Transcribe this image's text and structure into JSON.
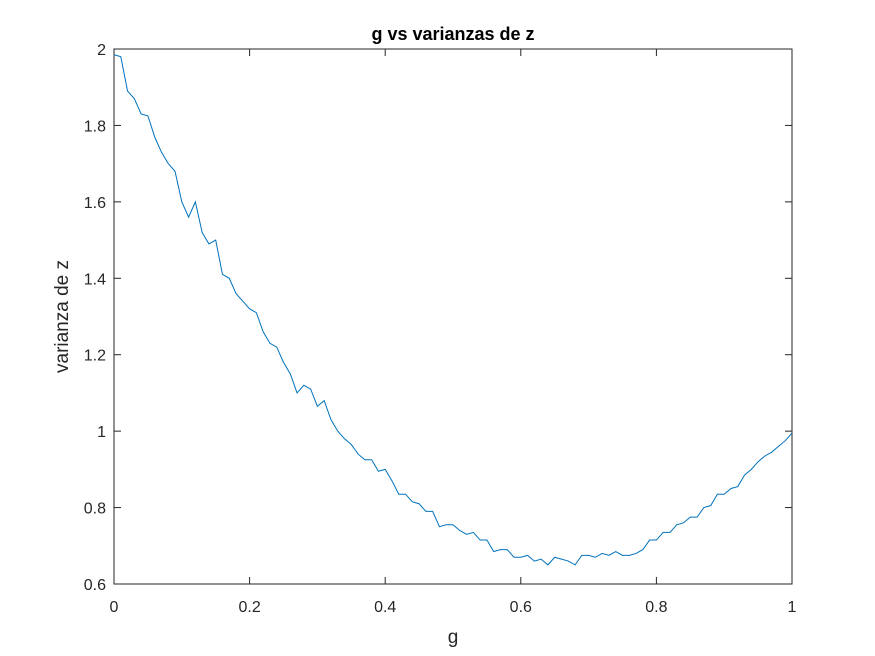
{
  "chart_data": {
    "type": "line",
    "title": "g vs varianzas de z",
    "xlabel": "g",
    "ylabel": "varianza de z",
    "xlim": [
      0,
      1
    ],
    "ylim": [
      0.6,
      2
    ],
    "xticks": [
      0,
      0.2,
      0.4,
      0.6,
      0.8,
      1
    ],
    "xtick_labels": [
      "0",
      "0.2",
      "0.4",
      "0.6",
      "0.8",
      "1"
    ],
    "yticks": [
      0.6,
      0.8,
      1,
      1.2,
      1.4,
      1.6,
      1.8,
      2
    ],
    "ytick_labels": [
      "0.6",
      "0.8",
      "1",
      "1.2",
      "1.4",
      "1.6",
      "1.8",
      "2"
    ],
    "grid": false,
    "line_color": "#0072BD",
    "series": [
      {
        "x": [
          0,
          0.01,
          0.02,
          0.03,
          0.04,
          0.05,
          0.06,
          0.07,
          0.08,
          0.09,
          0.1,
          0.11,
          0.12,
          0.13,
          0.14,
          0.15,
          0.16,
          0.17,
          0.18,
          0.19,
          0.2,
          0.21,
          0.22,
          0.23,
          0.24,
          0.25,
          0.26,
          0.27,
          0.28,
          0.29,
          0.3,
          0.31,
          0.32,
          0.33,
          0.34,
          0.35,
          0.36,
          0.37,
          0.38,
          0.39,
          0.4,
          0.41,
          0.42,
          0.43,
          0.44,
          0.45,
          0.46,
          0.47,
          0.48,
          0.49,
          0.5,
          0.51,
          0.52,
          0.53,
          0.54,
          0.55,
          0.56,
          0.57,
          0.58,
          0.59,
          0.6,
          0.61,
          0.62,
          0.63,
          0.64,
          0.65,
          0.66,
          0.67,
          0.68,
          0.69,
          0.7,
          0.71,
          0.72,
          0.73,
          0.74,
          0.75,
          0.76,
          0.77,
          0.78,
          0.79,
          0.8,
          0.81,
          0.82,
          0.83,
          0.84,
          0.85,
          0.86,
          0.87,
          0.88,
          0.89,
          0.9,
          0.91,
          0.92,
          0.93,
          0.94,
          0.95,
          0.96,
          0.97,
          0.98,
          0.99,
          1.0
        ],
        "values": [
          1.985,
          1.98,
          1.89,
          1.87,
          1.83,
          1.825,
          1.77,
          1.73,
          1.7,
          1.68,
          1.6,
          1.56,
          1.6,
          1.52,
          1.49,
          1.5,
          1.41,
          1.4,
          1.36,
          1.34,
          1.32,
          1.31,
          1.26,
          1.23,
          1.22,
          1.18,
          1.15,
          1.1,
          1.12,
          1.11,
          1.065,
          1.08,
          1.03,
          1.0,
          0.98,
          0.965,
          0.94,
          0.925,
          0.925,
          0.895,
          0.9,
          0.87,
          0.835,
          0.835,
          0.815,
          0.81,
          0.79,
          0.79,
          0.75,
          0.755,
          0.755,
          0.74,
          0.73,
          0.735,
          0.715,
          0.715,
          0.685,
          0.69,
          0.69,
          0.67,
          0.67,
          0.675,
          0.66,
          0.665,
          0.65,
          0.67,
          0.665,
          0.66,
          0.65,
          0.675,
          0.675,
          0.67,
          0.68,
          0.675,
          0.685,
          0.675,
          0.675,
          0.68,
          0.69,
          0.715,
          0.715,
          0.735,
          0.735,
          0.755,
          0.76,
          0.775,
          0.775,
          0.8,
          0.805,
          0.835,
          0.835,
          0.85,
          0.855,
          0.885,
          0.9,
          0.92,
          0.935,
          0.945,
          0.96,
          0.975,
          0.995
        ]
      }
    ]
  }
}
